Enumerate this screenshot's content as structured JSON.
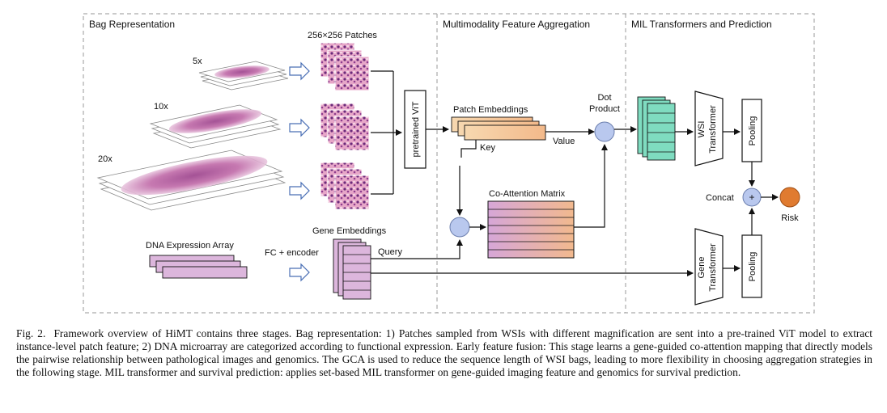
{
  "figure": {
    "sections": {
      "bag": "Bag Representation",
      "fusion": "Multimodality Feature Aggregation",
      "mil": "MIL Transformers and Prediction"
    },
    "mag_labels": [
      "5x",
      "10x",
      "20x"
    ],
    "patches_label": "256×256 Patches",
    "vit_label": "pretrained ViT",
    "patch_emb_label": "Patch Embeddings",
    "key_label": "Key",
    "value_label": "Value",
    "dot_product_label": [
      "Dot",
      "Product"
    ],
    "coatt_label": "Co-Attention Matrix",
    "gene_emb_label": "Gene Embeddings",
    "query_label": "Query",
    "fc_label": "FC + encoder",
    "dna_label": "DNA Expression Array",
    "wsi_tf_label": [
      "WSI",
      "Transformer"
    ],
    "gene_tf_label": [
      "Gene",
      "Transformer"
    ],
    "pooling_label": "Pooling",
    "concat_label": "Concat",
    "plus_symbol": "+",
    "risk_label": "Risk"
  },
  "caption": {
    "prefix": "Fig. 2.",
    "text": "Framework overview of HiMT contains three stages. Bag representation: 1) Patches sampled from WSIs with different magnification are sent into a pre-trained ViT model to extract instance-level patch feature; 2) DNA microarray are categorized according to functional expression. Early feature fusion: This stage learns a gene-guided co-attention mapping that directly models the pairwise relationship between pathological images and genomics. The GCA is used to reduce the sequence length of WSI bags, leading to more flexibility in choosing aggregation strategies in the following stage. MIL transformer and survival prediction: applies set-based MIL transformer on gene-guided imaging feature and genomics for survival prediction."
  },
  "colors": {
    "dashed_border": "#aaaaaa",
    "patch_orange": "#f6c9a0",
    "gene_pink": "#dcb6dc",
    "wsi_green": "#7fdcc0",
    "node_blue": "#b9c8ee",
    "risk_orange": "#e07b30",
    "tissue_purple": "#b05a98"
  }
}
